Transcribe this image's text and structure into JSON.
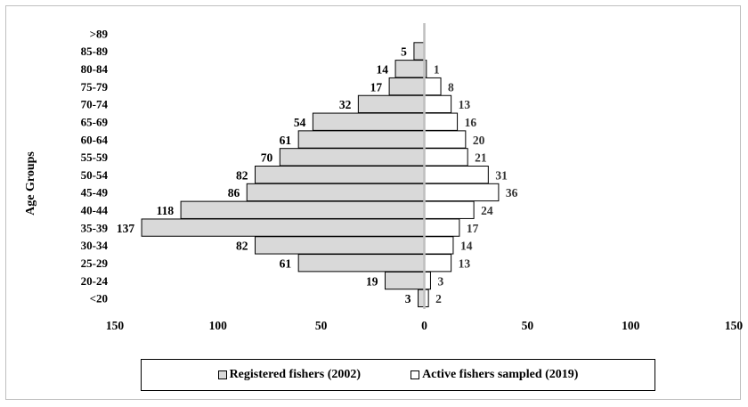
{
  "colors": {
    "registered_fill": "#d9d9d9",
    "active_fill": "#ffffff",
    "stroke": "#000000",
    "center_divider": "#bfbfbf"
  },
  "chart_data": {
    "type": "bar",
    "orientation": "horizontal",
    "layout": "population-pyramid",
    "ylabel": "Age Groups",
    "categories": [
      ">89",
      "85-89",
      "80-84",
      "75-79",
      "70-74",
      "65-69",
      "60-64",
      "55-59",
      "50-54",
      "45-49",
      "40-44",
      "35-39",
      "30-34",
      "25-29",
      "20-24",
      "<20"
    ],
    "series": [
      {
        "name": "Registered fishers (2002)",
        "side": "left",
        "values": [
          0,
          5,
          14,
          17,
          32,
          54,
          61,
          70,
          82,
          86,
          118,
          137,
          82,
          61,
          19,
          3
        ],
        "labels": [
          "",
          "5",
          "14",
          "17",
          "32",
          "54",
          "61",
          "70",
          "82",
          "86",
          "118",
          "137",
          "82",
          "61",
          "19",
          "3"
        ]
      },
      {
        "name": "Active fishers sampled (2019)",
        "side": "right",
        "values": [
          0,
          0,
          1,
          8,
          13,
          16,
          20,
          21,
          31,
          36,
          24,
          17,
          14,
          13,
          3,
          2
        ],
        "labels": [
          "",
          "",
          "1",
          "8",
          "13",
          "16",
          "20",
          "21",
          "31",
          "36",
          "24",
          "17",
          "14",
          "13",
          "3",
          "2"
        ]
      }
    ],
    "xlim": [
      -150,
      150
    ],
    "xticks": [
      -150,
      -100,
      -50,
      0,
      50,
      100,
      150
    ],
    "xtick_labels": [
      "150",
      "100",
      "50",
      "0",
      "50",
      "100",
      "150"
    ],
    "grid": false,
    "legend_position": "bottom-center"
  }
}
